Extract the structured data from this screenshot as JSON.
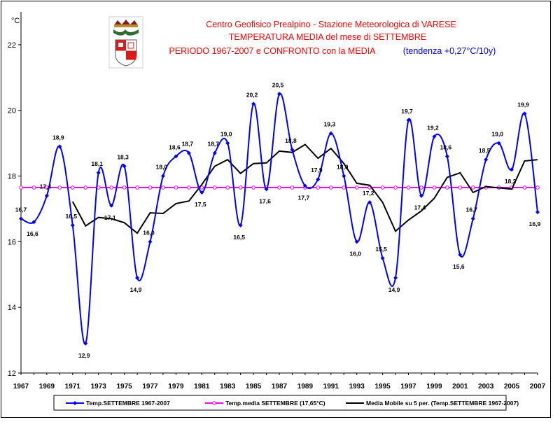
{
  "chart_data": {
    "type": "line",
    "title_lines": [
      "Centro Geofisico Prealpino - Stazione Meteorologica di VARESE",
      "TEMPERATURA MEDIA del mese di SETTEMBRE",
      "PERIODO 1967-2007 e CONFRONTO con la MEDIA"
    ],
    "trend_note": "(tendenza +0,27°C/10y)",
    "y_unit": "°C",
    "ylim": [
      12,
      23
    ],
    "yticks": [
      12,
      14,
      16,
      18,
      20,
      22
    ],
    "xlim": [
      1967,
      2007
    ],
    "xticks": [
      1967,
      1969,
      1971,
      1973,
      1975,
      1977,
      1979,
      1981,
      1983,
      1985,
      1987,
      1989,
      1991,
      1993,
      1995,
      1997,
      1999,
      2001,
      2003,
      2005,
      2007
    ],
    "grid": false,
    "legend_position": "bottom",
    "series": [
      {
        "name": "Temp.SETTEMBRE 1967-2007",
        "color": "#0000ff",
        "marker": "diamond",
        "x": [
          1967,
          1968,
          1969,
          1970,
          1971,
          1972,
          1973,
          1974,
          1975,
          1976,
          1977,
          1978,
          1979,
          1980,
          1981,
          1982,
          1983,
          1984,
          1985,
          1986,
          1987,
          1988,
          1989,
          1990,
          1991,
          1992,
          1993,
          1994,
          1995,
          1996,
          1997,
          1998,
          1999,
          2000,
          2001,
          2002,
          2003,
          2004,
          2005,
          2006,
          2007
        ],
        "values": [
          16.7,
          16.6,
          17.4,
          18.9,
          16.5,
          12.9,
          18.1,
          17.1,
          18.3,
          14.9,
          16.0,
          18.0,
          18.6,
          18.7,
          17.5,
          18.7,
          19.0,
          16.5,
          20.2,
          17.6,
          20.5,
          18.8,
          17.7,
          17.9,
          19.3,
          18.0,
          16.0,
          17.2,
          15.5,
          14.9,
          19.7,
          17.4,
          19.2,
          18.6,
          15.6,
          16.7,
          18.5,
          19.0,
          18.2,
          19.9,
          16.9
        ]
      },
      {
        "name": "Temp.media SETTEMBRE (17,65°C)",
        "color": "#ff00ff",
        "marker": "circle",
        "x": [
          1967,
          1968,
          1969,
          1970,
          1971,
          1972,
          1973,
          1974,
          1975,
          1976,
          1977,
          1978,
          1979,
          1980,
          1981,
          1982,
          1983,
          1984,
          1985,
          1986,
          1987,
          1988,
          1989,
          1990,
          1991,
          1992,
          1993,
          1994,
          1995,
          1996,
          1997,
          1998,
          1999,
          2000,
          2001,
          2002,
          2003,
          2004,
          2005,
          2006,
          2007
        ],
        "values": [
          17.65,
          17.65,
          17.65,
          17.65,
          17.65,
          17.65,
          17.65,
          17.65,
          17.65,
          17.65,
          17.65,
          17.65,
          17.65,
          17.65,
          17.65,
          17.65,
          17.65,
          17.65,
          17.65,
          17.65,
          17.65,
          17.65,
          17.65,
          17.65,
          17.65,
          17.65,
          17.65,
          17.65,
          17.65,
          17.65,
          17.65,
          17.65,
          17.65,
          17.65,
          17.65,
          17.65,
          17.65,
          17.65,
          17.65,
          17.65,
          17.65
        ]
      },
      {
        "name": "Media Mobile su 5 per. (Temp.SETTEMBRE 1967-2007)",
        "color": "#000000",
        "marker": "none",
        "x": [
          1971,
          1972,
          1973,
          1974,
          1975,
          1976,
          1977,
          1978,
          1979,
          1980,
          1981,
          1982,
          1983,
          1984,
          1985,
          1986,
          1987,
          1988,
          1989,
          1990,
          1991,
          1992,
          1993,
          1994,
          1995,
          1996,
          1997,
          1998,
          1999,
          2000,
          2001,
          2002,
          2003,
          2004,
          2005,
          2006,
          2007
        ],
        "values": [
          17.22,
          16.48,
          16.74,
          16.7,
          16.58,
          16.26,
          16.88,
          16.86,
          17.16,
          17.24,
          17.74,
          18.3,
          18.5,
          18.08,
          18.38,
          18.4,
          18.76,
          18.72,
          18.96,
          18.54,
          18.84,
          18.38,
          17.78,
          17.72,
          17.2,
          16.32,
          16.66,
          16.94,
          17.32,
          17.96,
          18.1,
          17.5,
          17.68,
          17.64,
          17.6,
          18.46,
          18.5
        ]
      }
    ],
    "data_labels": {
      "1967": "16,7",
      "1968": "16,6",
      "1969": "17,4",
      "1970": "18,9",
      "1971": "16,5",
      "1972": "12,9",
      "1973": "18,1",
      "1974": "17,1",
      "1975": "18,3",
      "1976": "14,9",
      "1977": "16,0",
      "1978": "18,0",
      "1979": "18,6",
      "1980": "18,7",
      "1981": "17,5",
      "1982": "18,7",
      "1983": "19,0",
      "1984": "16,5",
      "1985": "20,2",
      "1986": "17,6",
      "1987": "20,5",
      "1988": "18,8",
      "1989": "17,7",
      "1990": "17,9",
      "1991": "19,3",
      "1992": "18,0",
      "1993": "16,0",
      "1994": "17,2",
      "1995": "15,5",
      "1996": "14,9",
      "1997": "19,7",
      "1998": "17,4",
      "1999": "19,2",
      "2000": "18,6",
      "2001": "15,6",
      "2002": "16,7",
      "2003": "18,5",
      "2004": "19,0",
      "2005": "18,2",
      "2006": "19,9",
      "2007": "16,9"
    }
  }
}
